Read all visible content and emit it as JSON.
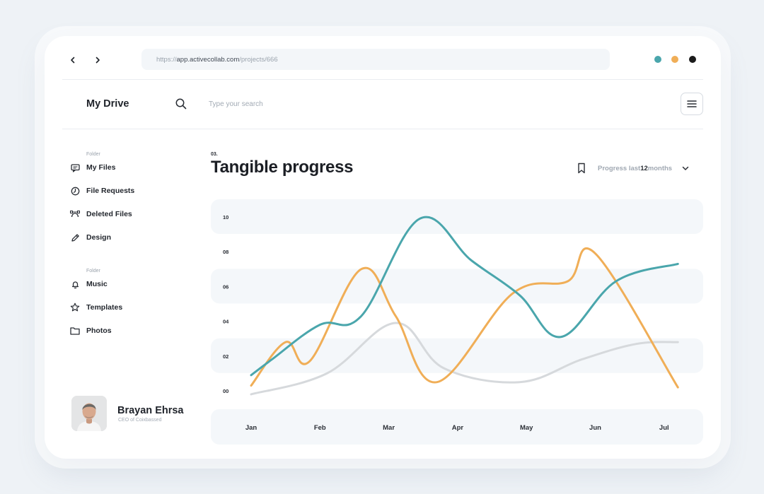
{
  "browser": {
    "url_scheme": "https://",
    "url_host": "app.activecollab.com",
    "url_path": "/projects/666",
    "window_dots": [
      "#4aa6ac",
      "#f0ae57",
      "#1b1b1b"
    ]
  },
  "header": {
    "app_title": "My Drive",
    "search_placeholder": "Type your search"
  },
  "sidebar": {
    "group1_label": "Folder",
    "group1_items": [
      {
        "label": "My Files",
        "icon": "chat-bubble-icon"
      },
      {
        "label": "File Requests",
        "icon": "clock-icon"
      },
      {
        "label": "Deleted Files",
        "icon": "bezier-curve-icon"
      },
      {
        "label": "Design",
        "icon": "pencil-icon"
      }
    ],
    "group2_label": "Folder",
    "group2_items": [
      {
        "label": "Music",
        "icon": "bell-icon"
      },
      {
        "label": "Templates",
        "icon": "star-icon"
      },
      {
        "label": "Photos",
        "icon": "folder-icon"
      }
    ]
  },
  "profile": {
    "name": "Brayan Ehrsa",
    "role": "CEO of Coixbassed"
  },
  "section": {
    "number": "03.",
    "title": "Tangible progress",
    "period_prefix": "Progress last ",
    "period_value": "12",
    "period_suffix": " months"
  },
  "chart_data": {
    "type": "line",
    "smooth": true,
    "categories": [
      "Jan",
      "Feb",
      "Mar",
      "Apr",
      "May",
      "Jun",
      "Jul"
    ],
    "y_ticks": [
      "00",
      "02",
      "04",
      "06",
      "08",
      "10"
    ],
    "ylim": [
      0,
      10
    ],
    "grid_bands": true,
    "series": [
      {
        "color": "#4aa6ac",
        "x": [
          0,
          0.3,
          1,
          1.6,
          2.45,
          3.2,
          3.9,
          4.5,
          5.3,
          6.2
        ],
        "y": [
          0.9,
          1.8,
          3.8,
          4.3,
          9.9,
          7.5,
          5.5,
          3.1,
          6.3,
          7.3
        ]
      },
      {
        "color": "#f0ae57",
        "x": [
          0,
          0.5,
          0.85,
          1.6,
          2.1,
          2.7,
          3.8,
          4.6,
          5.0,
          6.2
        ],
        "y": [
          0.3,
          2.8,
          1.7,
          7.0,
          4.3,
          0.5,
          5.6,
          6.3,
          7.9,
          0.2
        ]
      },
      {
        "color": "#d6d9dc",
        "x": [
          0,
          1.1,
          2.1,
          2.8,
          3.9,
          4.8,
          5.6,
          6.2
        ],
        "y": [
          -0.2,
          1.0,
          3.9,
          1.3,
          0.5,
          1.8,
          2.7,
          2.8
        ]
      }
    ]
  }
}
